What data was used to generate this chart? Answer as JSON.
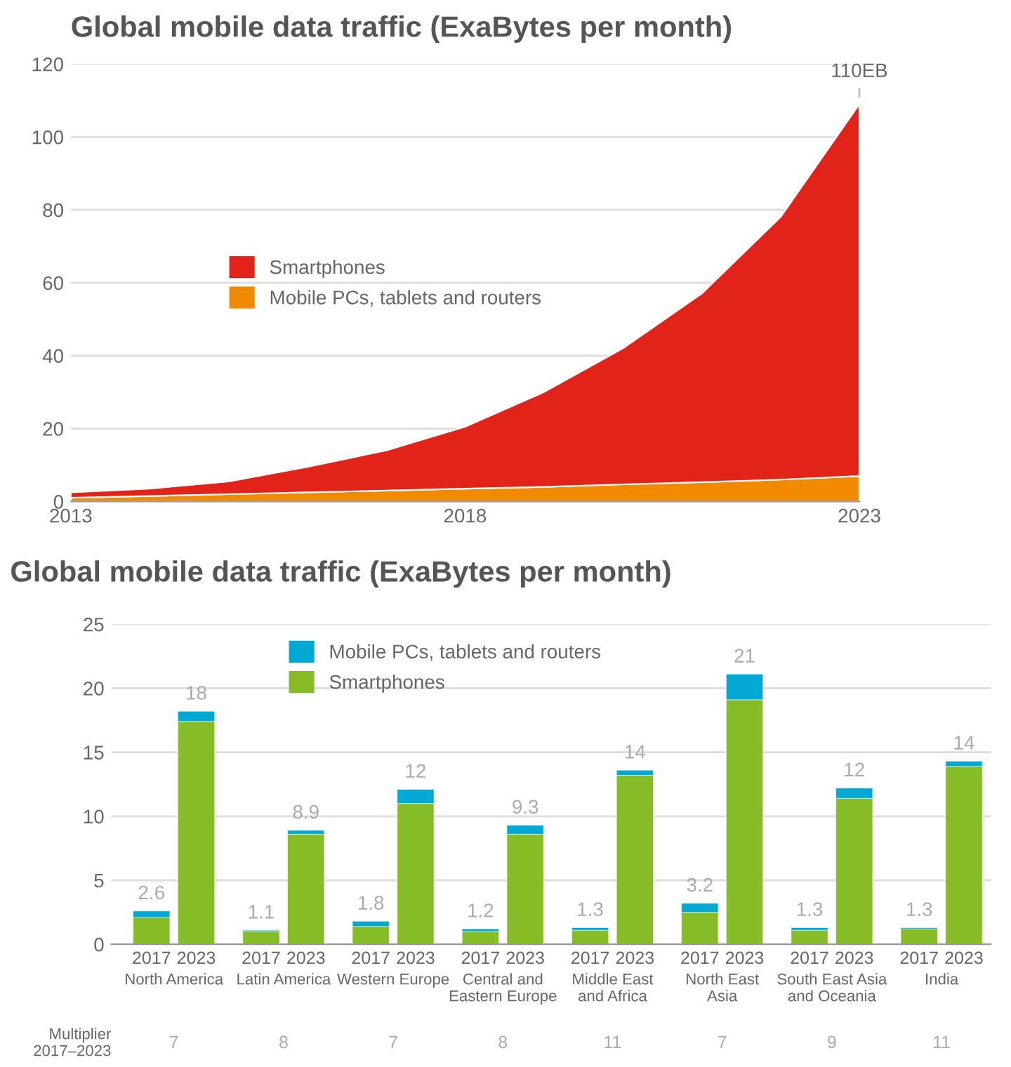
{
  "chart_data": [
    {
      "type": "area",
      "stacked": true,
      "title": "Global mobile data traffic (ExaBytes per month)",
      "x": [
        2013,
        2014,
        2015,
        2016,
        2017,
        2018,
        2019,
        2020,
        2021,
        2022,
        2023
      ],
      "series": [
        {
          "name": "Mobile PCs, tablets and routers",
          "color": "#f08a00",
          "values": [
            1,
            1.5,
            2,
            2.5,
            3,
            3.5,
            4,
            4.7,
            5.3,
            6,
            7
          ]
        },
        {
          "name": "Smartphones",
          "color": "#e2231a",
          "values": [
            1.5,
            2,
            3.5,
            7,
            11,
            17,
            26,
            37.3,
            51.7,
            72,
            102
          ]
        }
      ],
      "xlim": [
        2013,
        2023
      ],
      "xticks": [
        2013,
        2018,
        2023
      ],
      "ylim": [
        0,
        120
      ],
      "yticks": [
        0,
        20,
        40,
        60,
        80,
        100,
        120
      ],
      "grid": "y",
      "legend": "left",
      "annotations": [
        {
          "text": "110EB",
          "x": 2023,
          "y": 110
        }
      ]
    },
    {
      "type": "bar",
      "stacked": true,
      "title": "Global mobile data traffic (ExaBytes per month)",
      "categories": [
        "2017",
        "2023",
        "2017",
        "2023",
        "2017",
        "2023",
        "2017",
        "2023",
        "2017",
        "2023",
        "2017",
        "2023",
        "2017",
        "2023",
        "2017",
        "2023"
      ],
      "series": [
        {
          "name": "Smartphones",
          "color": "#86bc25",
          "values": [
            2.1,
            17.4,
            1.0,
            8.6,
            1.4,
            11.0,
            1.0,
            8.6,
            1.1,
            13.2,
            2.5,
            19.1,
            1.1,
            11.4,
            1.2,
            13.9
          ]
        },
        {
          "name": "Mobile PCs, tablets and routers",
          "color": "#00a9d4",
          "values": [
            0.5,
            0.8,
            0.1,
            0.3,
            0.4,
            1.1,
            0.2,
            0.7,
            0.2,
            0.4,
            0.7,
            2.0,
            0.2,
            0.8,
            0.1,
            0.4
          ]
        }
      ],
      "totals": [
        "2.6",
        "18",
        "1.1",
        "8.9",
        "1.8",
        "12",
        "1.2",
        "9.3",
        "1.3",
        "14",
        "3.2",
        "21",
        "1.3",
        "12",
        "1.3",
        "14"
      ],
      "ylim": [
        0,
        25
      ],
      "yticks": [
        0,
        5,
        10,
        15,
        20,
        25
      ],
      "grid": "y",
      "legend": "top",
      "annotations": [
        "North America",
        "Latin America",
        "Western Europe",
        "Central and\nEastern Europe",
        "Middle East\nand Africa",
        "North East\nAsia",
        "South East Asia\nand Oceania",
        "India",
        "Multiplier\n2017–2023",
        "7",
        "8",
        "7",
        "8",
        "11",
        "7",
        "9",
        "11"
      ]
    }
  ]
}
